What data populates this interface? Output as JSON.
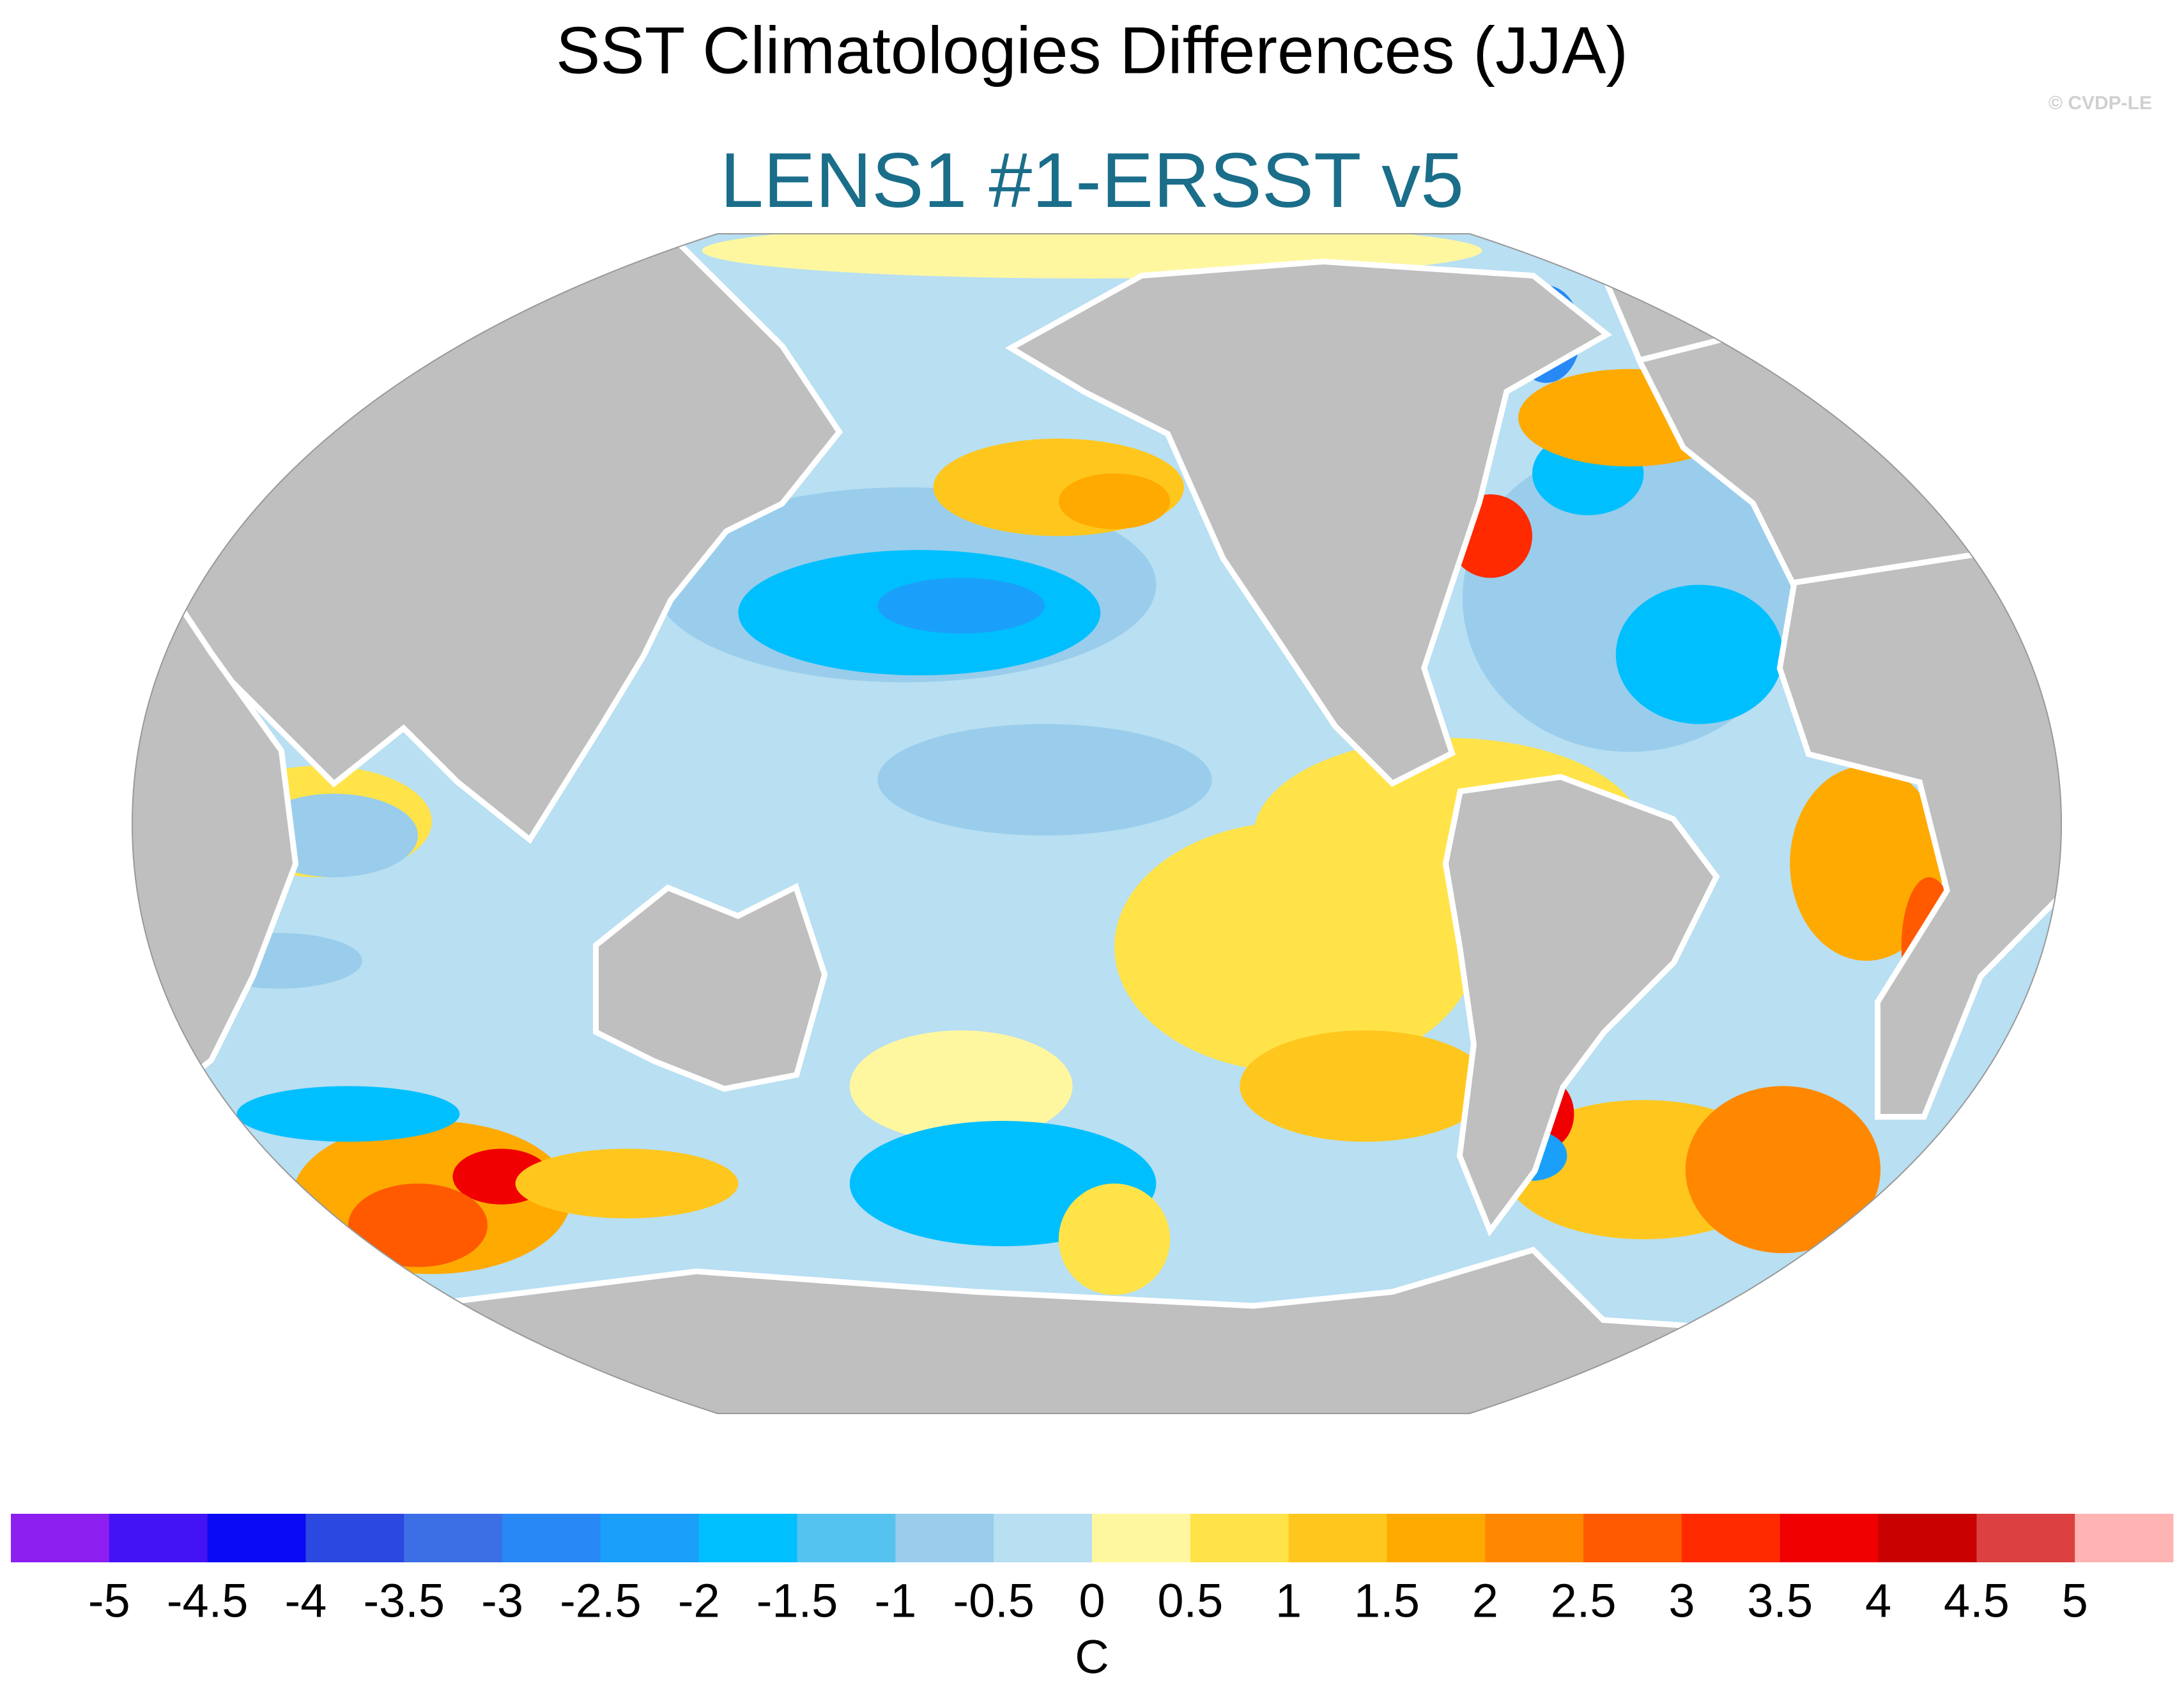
{
  "title": "SST Climatologies Differences (JJA)",
  "credit": "© CVDP-LE",
  "subtitle": "LENS1 #1-ERSST v5",
  "colorbar": {
    "colors": [
      "#8c1ff0",
      "#4413f5",
      "#0a0af5",
      "#2b48e0",
      "#3c6ee6",
      "#2888f5",
      "#1aa0fa",
      "#00bfff",
      "#55c3f0",
      "#99cdeb",
      "#b8dff2",
      "#fff7a0",
      "#ffe349",
      "#ffc71e",
      "#ffaa00",
      "#ff8800",
      "#ff5a00",
      "#ff2a00",
      "#f00000",
      "#c80000",
      "#dc4040",
      "#ffb4b4"
    ],
    "ticks": [
      -5,
      -4.5,
      -4,
      -3.5,
      -3,
      -2.5,
      -2,
      -1.5,
      -1,
      -0.5,
      0,
      0.5,
      1,
      1.5,
      2,
      2.5,
      3,
      3.5,
      4,
      4.5,
      5
    ],
    "label": "C"
  }
}
